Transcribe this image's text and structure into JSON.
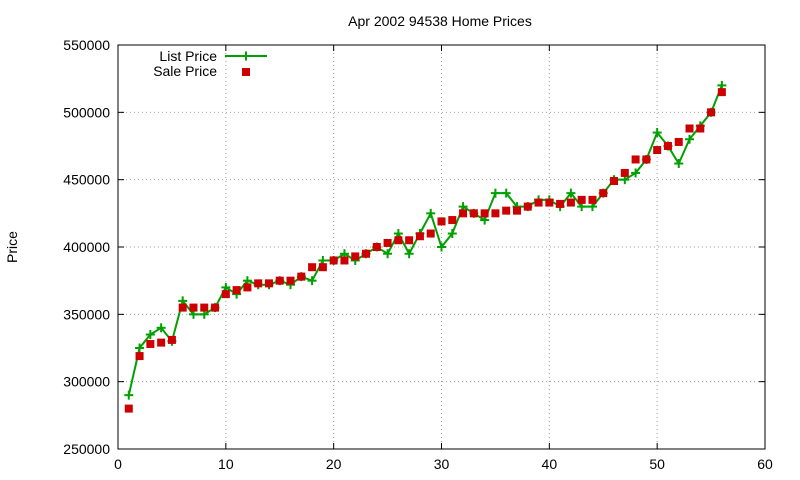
{
  "chart_data": {
    "type": "line",
    "title": "Apr 2002 94538 Home Prices",
    "xlabel": "",
    "ylabel": "Price",
    "xlim": [
      0,
      60
    ],
    "ylim": [
      250000,
      550000
    ],
    "xticks": [
      "0",
      "10",
      "20",
      "30",
      "40",
      "50",
      "60"
    ],
    "yticks": [
      "250000",
      "300000",
      "350000",
      "400000",
      "450000",
      "500000",
      "550000"
    ],
    "grid": true,
    "legend_position": "top-left",
    "x": [
      1,
      2,
      3,
      4,
      5,
      6,
      7,
      8,
      9,
      10,
      11,
      12,
      13,
      14,
      15,
      16,
      17,
      18,
      19,
      20,
      21,
      22,
      23,
      24,
      25,
      26,
      27,
      28,
      29,
      30,
      31,
      32,
      33,
      34,
      35,
      36,
      37,
      38,
      39,
      40,
      41,
      42,
      43,
      44,
      45,
      46,
      47,
      48,
      49,
      50,
      51,
      52,
      53,
      54,
      55,
      56
    ],
    "series": [
      {
        "name": "List Price",
        "style": "line+plus",
        "color": "#00a000",
        "values": [
          290000,
          325000,
          335000,
          340000,
          330000,
          360000,
          350000,
          350000,
          355000,
          370000,
          365000,
          375000,
          372000,
          372000,
          375000,
          372000,
          378000,
          375000,
          390000,
          390000,
          395000,
          390000,
          395000,
          400000,
          395000,
          410000,
          395000,
          410000,
          425000,
          400000,
          410000,
          430000,
          425000,
          420000,
          440000,
          440000,
          430000,
          430000,
          435000,
          435000,
          430000,
          440000,
          430000,
          430000,
          440000,
          450000,
          450000,
          455000,
          465000,
          485000,
          475000,
          462000,
          480000,
          490000,
          500000,
          520000
        ]
      },
      {
        "name": "Sale Price",
        "style": "square",
        "color": "#cc0000",
        "values": [
          280000,
          319000,
          328000,
          329000,
          331000,
          355000,
          355000,
          355000,
          355000,
          365000,
          368000,
          370000,
          373000,
          373000,
          375000,
          375000,
          378000,
          385000,
          385000,
          390000,
          390000,
          393000,
          395000,
          400000,
          403000,
          405000,
          405000,
          408000,
          410000,
          419000,
          420000,
          425000,
          425000,
          425000,
          425000,
          427000,
          427000,
          430000,
          433000,
          433000,
          432000,
          433000,
          435000,
          435000,
          440000,
          449000,
          455000,
          465000,
          465000,
          472000,
          475000,
          478000,
          488000,
          488000,
          500000,
          515000
        ]
      }
    ]
  }
}
